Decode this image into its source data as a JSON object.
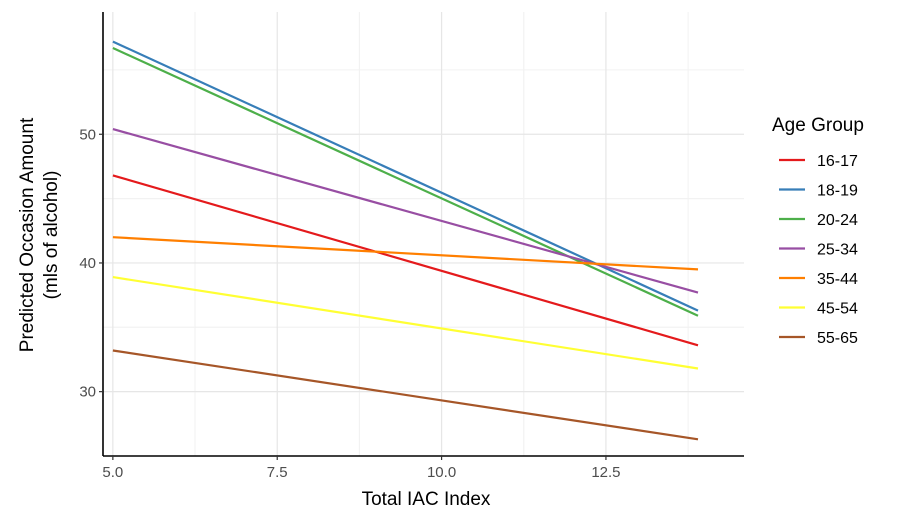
{
  "chart_data": {
    "type": "line",
    "xlabel": "Total IAC Index",
    "ylabel_line1": "Predicted Occasion Amount",
    "ylabel_line2": "(mls of alcohol)",
    "xlim": [
      4.85,
      14.6
    ],
    "ylim": [
      25.0,
      59.5
    ],
    "x_ticks": [
      5.0,
      7.5,
      10.0,
      12.5
    ],
    "x_tick_labels": [
      "5.0",
      "7.5",
      "10.0",
      "12.5"
    ],
    "y_ticks": [
      30,
      40,
      50
    ],
    "y_tick_labels": [
      "30",
      "40",
      "50"
    ],
    "grid": true,
    "legend_title": "Age Group",
    "legend_position": "right",
    "series": [
      {
        "name": "16-17",
        "color": "#E41A1C",
        "x": [
          5.0,
          13.9
        ],
        "y": [
          46.8,
          33.6
        ]
      },
      {
        "name": "18-19",
        "color": "#377EB8",
        "x": [
          5.0,
          13.9
        ],
        "y": [
          57.2,
          36.3
        ]
      },
      {
        "name": "20-24",
        "color": "#4DAF4A",
        "x": [
          5.0,
          13.9
        ],
        "y": [
          56.7,
          35.9
        ]
      },
      {
        "name": "25-34",
        "color": "#984EA3",
        "x": [
          5.0,
          13.9
        ],
        "y": [
          50.4,
          37.7
        ]
      },
      {
        "name": "35-44",
        "color": "#FF7F00",
        "x": [
          5.0,
          13.9
        ],
        "y": [
          42.0,
          39.5
        ]
      },
      {
        "name": "45-54",
        "color": "#FFFF33",
        "x": [
          5.0,
          13.9
        ],
        "y": [
          38.9,
          31.8
        ]
      },
      {
        "name": "55-65",
        "color": "#A65628",
        "x": [
          5.0,
          13.9
        ],
        "y": [
          33.2,
          26.3
        ]
      }
    ]
  }
}
